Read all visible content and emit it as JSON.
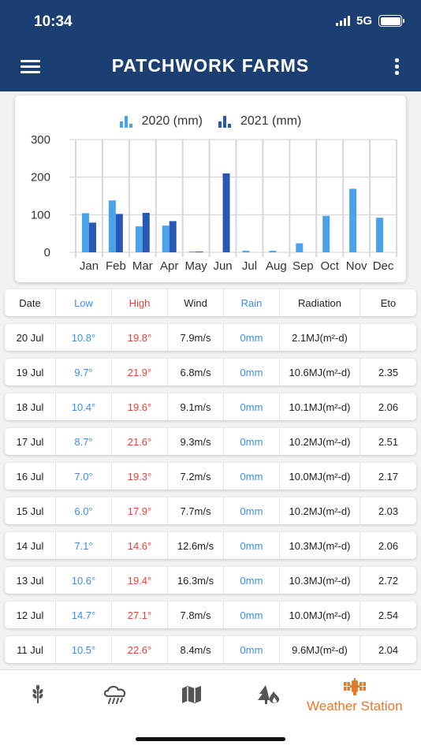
{
  "status_bar": {
    "time": "10:34",
    "network": "5G"
  },
  "header": {
    "title": "PATCHWORK FARMS",
    "menu_icon": "hamburger-menu-icon",
    "more_icon": "more-vertical-icon"
  },
  "colors": {
    "header_bg": "#1b3f73",
    "series_2020": "#4aa3ea",
    "series_2021": "#2858b3",
    "low": "#3a8ee6",
    "high": "#e0443a",
    "active_tab": "#e8772e",
    "inactive_tab": "#555555"
  },
  "chart_data": {
    "type": "bar",
    "categories": [
      "Jan",
      "Feb",
      "Mar",
      "Apr",
      "May",
      "Jun",
      "Jul",
      "Aug",
      "Sep",
      "Oct",
      "Nov",
      "Dec"
    ],
    "series": [
      {
        "name": "2020 (mm)",
        "values": [
          104,
          138,
          69,
          71,
          2,
          null,
          4,
          4,
          24,
          97,
          169,
          92
        ]
      },
      {
        "name": "2021 (mm)",
        "values": [
          79,
          102,
          105,
          83,
          2,
          210,
          null,
          null,
          null,
          null,
          null,
          null
        ]
      }
    ],
    "yticks": [
      0,
      100,
      200,
      300
    ],
    "ylim": [
      0,
      300
    ],
    "grid": true,
    "legend": "top-center"
  },
  "table": {
    "headers": {
      "date": "Date",
      "low": "Low",
      "high": "High",
      "wind": "Wind",
      "rain": "Rain",
      "radiation": "Radiation",
      "eto": "Eto"
    },
    "rows": [
      {
        "date": "20 Jul",
        "low": "10.8°",
        "high": "19.8°",
        "wind": "7.9m/s",
        "rain": "0mm",
        "radiation": "2.1MJ(m²-d)",
        "eto": ""
      },
      {
        "date": "19 Jul",
        "low": "9.7°",
        "high": "21.9°",
        "wind": "6.8m/s",
        "rain": "0mm",
        "radiation": "10.6MJ(m²-d)",
        "eto": "2.35"
      },
      {
        "date": "18 Jul",
        "low": "10.4°",
        "high": "19.6°",
        "wind": "9.1m/s",
        "rain": "0mm",
        "radiation": "10.1MJ(m²-d)",
        "eto": "2.06"
      },
      {
        "date": "17 Jul",
        "low": "8.7°",
        "high": "21.6°",
        "wind": "9.3m/s",
        "rain": "0mm",
        "radiation": "10.2MJ(m²-d)",
        "eto": "2.51"
      },
      {
        "date": "16 Jul",
        "low": "7.0°",
        "high": "19.3°",
        "wind": "7.2m/s",
        "rain": "0mm",
        "radiation": "10.0MJ(m²-d)",
        "eto": "2.17"
      },
      {
        "date": "15 Jul",
        "low": "6.0°",
        "high": "17.9°",
        "wind": "7.7m/s",
        "rain": "0mm",
        "radiation": "10.2MJ(m²-d)",
        "eto": "2.03"
      },
      {
        "date": "14 Jul",
        "low": "7.1°",
        "high": "14.6°",
        "wind": "12.6m/s",
        "rain": "0mm",
        "radiation": "10.3MJ(m²-d)",
        "eto": "2.06"
      },
      {
        "date": "13 Jul",
        "low": "10.6°",
        "high": "19.4°",
        "wind": "16.3m/s",
        "rain": "0mm",
        "radiation": "10.3MJ(m²-d)",
        "eto": "2.72"
      },
      {
        "date": "12 Jul",
        "low": "14.7°",
        "high": "27.1°",
        "wind": "7.8m/s",
        "rain": "0mm",
        "radiation": "10.0MJ(m²-d)",
        "eto": "2.54"
      },
      {
        "date": "11 Jul",
        "low": "10.5°",
        "high": "22.6°",
        "wind": "8.4m/s",
        "rain": "0mm",
        "radiation": "9.6MJ(m²-d)",
        "eto": "2.04"
      }
    ]
  },
  "bottom_nav": {
    "items": [
      {
        "icon": "wheat-icon"
      },
      {
        "icon": "rain-cloud-icon"
      },
      {
        "icon": "map-icon"
      },
      {
        "icon": "fire-tree-icon"
      },
      {
        "icon": "satellite-icon",
        "label": "Weather Station",
        "active": true
      }
    ]
  }
}
